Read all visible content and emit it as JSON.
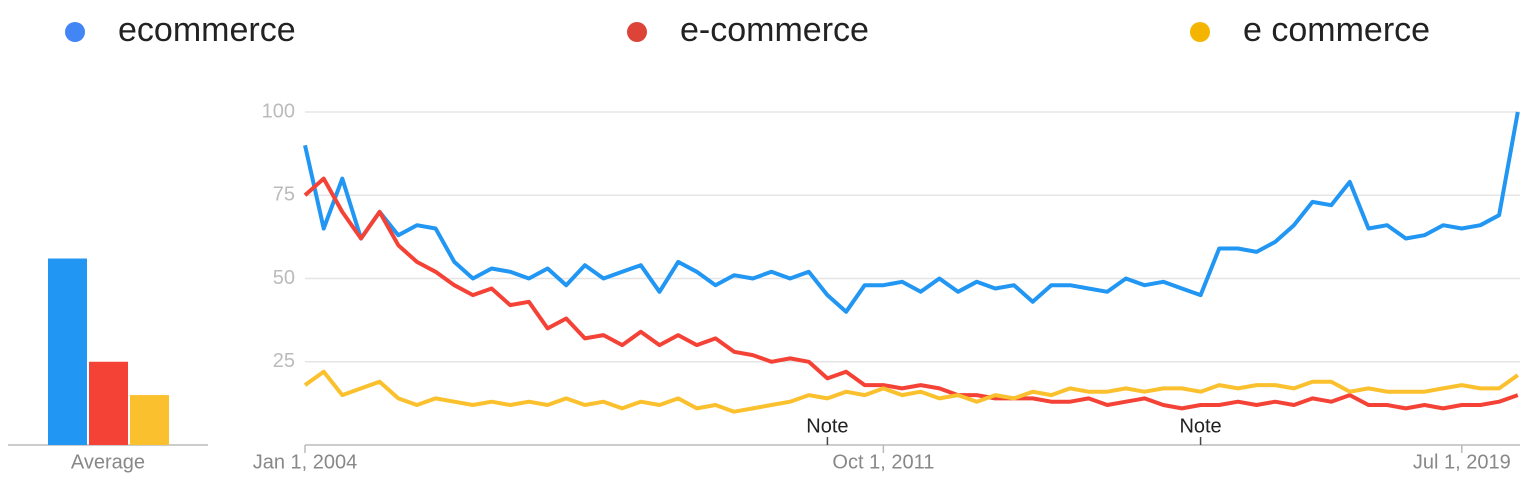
{
  "chart_data": [
    {
      "type": "line",
      "x": [
        2004,
        2004.25,
        2004.5,
        2004.75,
        2005,
        2005.25,
        2005.5,
        2005.75,
        2006,
        2006.25,
        2006.5,
        2006.75,
        2007,
        2007.25,
        2007.5,
        2007.75,
        2008,
        2008.25,
        2008.5,
        2008.75,
        2009,
        2009.25,
        2009.5,
        2009.75,
        2010,
        2010.25,
        2010.5,
        2010.75,
        2011,
        2011.25,
        2011.5,
        2011.75,
        2012,
        2012.25,
        2012.5,
        2012.75,
        2013,
        2013.25,
        2013.5,
        2013.75,
        2014,
        2014.25,
        2014.5,
        2014.75,
        2015,
        2015.25,
        2015.5,
        2015.75,
        2016,
        2016.25,
        2016.5,
        2016.75,
        2017,
        2017.25,
        2017.5,
        2017.75,
        2018,
        2018.25,
        2018.5,
        2018.75,
        2019,
        2019.25,
        2019.5,
        2019.75,
        2020,
        2020.25
      ],
      "series": [
        {
          "name": "ecommerce",
          "color": "#2196f3",
          "legend_color": "#4285f4",
          "values": [
            90,
            65,
            80,
            62,
            70,
            63,
            66,
            65,
            55,
            50,
            53,
            52,
            50,
            53,
            48,
            54,
            50,
            52,
            54,
            46,
            55,
            52,
            48,
            51,
            50,
            52,
            50,
            52,
            45,
            40,
            48,
            48,
            49,
            46,
            50,
            46,
            49,
            47,
            48,
            43,
            48,
            48,
            47,
            46,
            50,
            48,
            49,
            47,
            45,
            59,
            59,
            58,
            61,
            66,
            73,
            72,
            79,
            65,
            66,
            62,
            63,
            66,
            65,
            66,
            69,
            100
          ]
        },
        {
          "name": "e-commerce",
          "color": "#f44336",
          "legend_color": "#db4437",
          "values": [
            75,
            80,
            70,
            62,
            70,
            60,
            55,
            52,
            48,
            45,
            47,
            42,
            43,
            35,
            38,
            32,
            33,
            30,
            34,
            30,
            33,
            30,
            32,
            28,
            27,
            25,
            26,
            25,
            20,
            22,
            18,
            18,
            17,
            18,
            17,
            15,
            15,
            14,
            14,
            14,
            13,
            13,
            14,
            12,
            13,
            14,
            12,
            11,
            12,
            12,
            13,
            12,
            13,
            12,
            14,
            13,
            15,
            12,
            12,
            11,
            12,
            11,
            12,
            12,
            13,
            15
          ]
        },
        {
          "name": "e commerce",
          "color": "#fbc02d",
          "legend_color": "#f4b400",
          "values": [
            18,
            22,
            15,
            17,
            19,
            14,
            12,
            14,
            13,
            12,
            13,
            12,
            13,
            12,
            14,
            12,
            13,
            11,
            13,
            12,
            14,
            11,
            12,
            10,
            11,
            12,
            13,
            15,
            14,
            16,
            15,
            17,
            15,
            16,
            14,
            15,
            13,
            15,
            14,
            16,
            15,
            17,
            16,
            16,
            17,
            16,
            17,
            17,
            16,
            18,
            17,
            18,
            18,
            17,
            19,
            19,
            16,
            17,
            16,
            16,
            16,
            17,
            18,
            17,
            17,
            21
          ]
        }
      ],
      "xlim": [
        2004,
        2020.28
      ],
      "xticks": [
        {
          "value": 2004,
          "label": "Jan 1, 2004"
        },
        {
          "value": 2011.75,
          "label": "Oct 1, 2011"
        },
        {
          "value": 2019.5,
          "label": "Jul 1, 2019"
        }
      ],
      "ylim": [
        0,
        100
      ],
      "yticks": [
        25,
        50,
        75,
        100
      ],
      "grid": true,
      "annotations": [
        {
          "x": 2011.0,
          "text": "Note"
        },
        {
          "x": 2016.0,
          "text": "Note"
        }
      ]
    },
    {
      "type": "bar",
      "xlabel": "Average",
      "values": [
        56,
        25,
        15
      ],
      "colors": [
        "#2196f3",
        "#f44336",
        "#fbc02d"
      ],
      "ylim": [
        0,
        100
      ]
    }
  ]
}
